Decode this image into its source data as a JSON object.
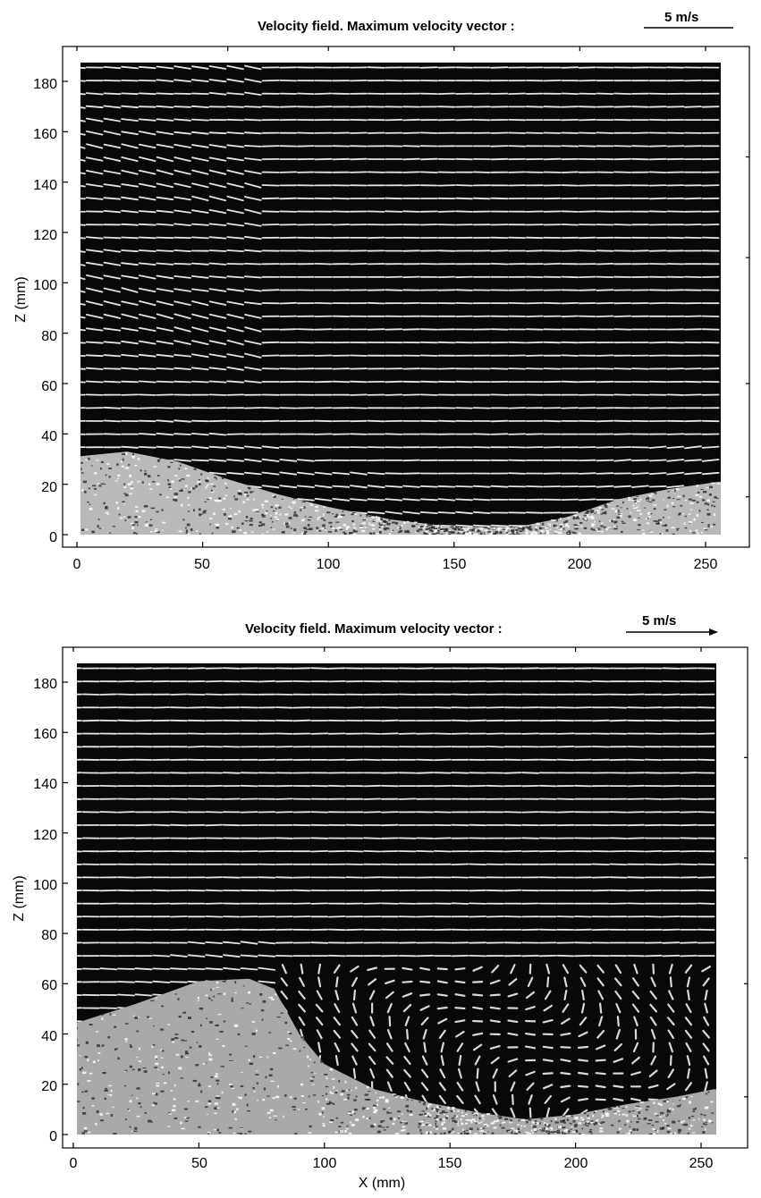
{
  "chart_data": [
    {
      "type": "vector-field",
      "title": "Velocity field. Maximum velocity vector :",
      "scale_label": "5 m/s",
      "scale_arrow": false,
      "xlabel": "",
      "ylabel": "Z (mm)",
      "xlim": [
        -2,
        257
      ],
      "ylim": [
        -3,
        190
      ],
      "x_ticks": [
        0,
        50,
        100,
        150,
        200,
        250
      ],
      "y_ticks": [
        0,
        20,
        40,
        60,
        80,
        100,
        120,
        140,
        160,
        180
      ],
      "field_extent": {
        "x": [
          0,
          255
        ],
        "z": [
          0,
          187
        ]
      },
      "flow": {
        "direction": "left-to-right",
        "wavy_region_x": [
          0,
          75
        ],
        "wavy_region_z": [
          60,
          187
        ]
      },
      "profile": [
        [
          0,
          31
        ],
        [
          20,
          33
        ],
        [
          40,
          29
        ],
        [
          60,
          22
        ],
        [
          80,
          16
        ],
        [
          100,
          11
        ],
        [
          125,
          6
        ],
        [
          150,
          3
        ],
        [
          175,
          3
        ],
        [
          195,
          7
        ],
        [
          215,
          14
        ],
        [
          235,
          18
        ],
        [
          255,
          21
        ]
      ],
      "inset_marks_x": [
        0,
        60,
        100,
        150,
        200,
        250
      ],
      "inset_marks_y": [
        15,
        60,
        110,
        150
      ]
    },
    {
      "type": "vector-field",
      "title": "Velocity field. Maximum velocity vector :",
      "scale_label": "5 m/s",
      "scale_arrow": true,
      "xlabel": "X (mm)",
      "ylabel": "Z (mm)",
      "xlim": [
        -2,
        257
      ],
      "ylim": [
        -3,
        193
      ],
      "x_ticks": [
        0,
        50,
        100,
        150,
        200,
        250
      ],
      "y_ticks": [
        0,
        20,
        40,
        60,
        80,
        100,
        120,
        140,
        160,
        180
      ],
      "field_extent": {
        "x": [
          0,
          255
        ],
        "z": [
          0,
          187
        ]
      },
      "flow": {
        "direction": "left-to-right",
        "recirculation_region_x": [
          80,
          255
        ],
        "recirculation_region_z": [
          0,
          68
        ]
      },
      "profile": [
        [
          0,
          44
        ],
        [
          25,
          52
        ],
        [
          50,
          61
        ],
        [
          70,
          62
        ],
        [
          80,
          58
        ],
        [
          90,
          40
        ],
        [
          100,
          28
        ],
        [
          120,
          18
        ],
        [
          140,
          13
        ],
        [
          160,
          9
        ],
        [
          180,
          6
        ],
        [
          200,
          8
        ],
        [
          220,
          12
        ],
        [
          240,
          15
        ],
        [
          255,
          18
        ]
      ],
      "inset_marks_x": [
        0,
        100,
        150,
        200,
        250
      ],
      "inset_marks_y": [
        15,
        60,
        110,
        150
      ]
    }
  ]
}
